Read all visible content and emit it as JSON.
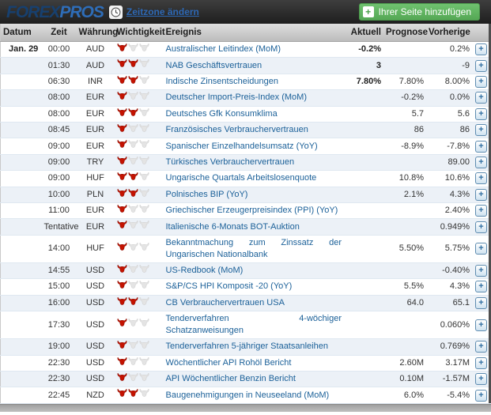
{
  "header": {
    "logo_forex": "FOREX",
    "logo_pros": "PROS",
    "timezone_link": "Zeitzone ändern",
    "add_button_label": "Ihrer Seite hinzufügen"
  },
  "glyphs": {
    "plus": "+"
  },
  "icons": {
    "timezone": "clock-icon",
    "add_button": "plus-icon",
    "importance": "bull-icon",
    "row_action": "expand-plus-icon"
  },
  "colors": {
    "button_green": "#5fb75f",
    "link_blue": "#1c6199",
    "timezone_link_blue": "#2d68b5",
    "bull_red": "#c41200",
    "bull_inactive": "#e4e4e4",
    "row_alt": "#ecf1f7",
    "topbar_dark": "#2a2a2a"
  },
  "table": {
    "columns": [
      "Datum",
      "Zeit",
      "Währung",
      "Wichtigkeit",
      "Ereignis",
      "Aktuell",
      "Prognose",
      "Vorherige"
    ],
    "rows": [
      {
        "datum": "Jan. 29",
        "zeit": "00:00",
        "waehrung": "AUD",
        "importance": 1,
        "ereignis": "Australischer Leitindex (MoM)",
        "aktuell": "-0.2%",
        "prognose": "",
        "vorherige": "0.2%",
        "twoline": false
      },
      {
        "datum": "",
        "zeit": "01:30",
        "waehrung": "AUD",
        "importance": 2,
        "ereignis": "NAB Geschäftsvertrauen",
        "aktuell": "3",
        "prognose": "",
        "vorherige": "-9",
        "twoline": false
      },
      {
        "datum": "",
        "zeit": "06:30",
        "waehrung": "INR",
        "importance": 2,
        "ereignis": "Indische Zinsentscheidungen",
        "aktuell": "7.80%",
        "prognose": "7.80%",
        "vorherige": "8.00%",
        "twoline": false
      },
      {
        "datum": "",
        "zeit": "08:00",
        "waehrung": "EUR",
        "importance": 1,
        "ereignis": "Deutscher Import-Preis-Index (MoM)",
        "aktuell": "",
        "prognose": "-0.2%",
        "vorherige": "0.0%",
        "twoline": false
      },
      {
        "datum": "",
        "zeit": "08:00",
        "waehrung": "EUR",
        "importance": 2,
        "ereignis": "Deutsches Gfk Konsumklima",
        "aktuell": "",
        "prognose": "5.7",
        "vorherige": "5.6",
        "twoline": false
      },
      {
        "datum": "",
        "zeit": "08:45",
        "waehrung": "EUR",
        "importance": 1,
        "ereignis": "Französisches Verbrauchervertrauen",
        "aktuell": "",
        "prognose": "86",
        "vorherige": "86",
        "twoline": false
      },
      {
        "datum": "",
        "zeit": "09:00",
        "waehrung": "EUR",
        "importance": 1,
        "ereignis": "Spanischer Einzelhandelsumsatz (YoY)",
        "aktuell": "",
        "prognose": "-8.9%",
        "vorherige": "-7.8%",
        "twoline": false
      },
      {
        "datum": "",
        "zeit": "09:00",
        "waehrung": "TRY",
        "importance": 1,
        "ereignis": "Türkisches Verbrauchervertrauen",
        "aktuell": "",
        "prognose": "",
        "vorherige": "89.00",
        "twoline": false
      },
      {
        "datum": "",
        "zeit": "09:00",
        "waehrung": "HUF",
        "importance": 2,
        "ereignis": "Ungarische Quartals Arbeitslosenquote",
        "aktuell": "",
        "prognose": "10.8%",
        "vorherige": "10.6%",
        "twoline": false
      },
      {
        "datum": "",
        "zeit": "10:00",
        "waehrung": "PLN",
        "importance": 2,
        "ereignis": "Polnisches BIP (YoY)",
        "aktuell": "",
        "prognose": "2.1%",
        "vorherige": "4.3%",
        "twoline": false
      },
      {
        "datum": "",
        "zeit": "11:00",
        "waehrung": "EUR",
        "importance": 1,
        "ereignis": "Griechischer Erzeugerpreisindex (PPI) (YoY)",
        "aktuell": "",
        "prognose": "",
        "vorherige": "2.40%",
        "twoline": true
      },
      {
        "datum": "",
        "zeit": "Tentative",
        "waehrung": "EUR",
        "importance": 1,
        "ereignis": "Italienische 6-Monats BOT-Auktion",
        "aktuell": "",
        "prognose": "",
        "vorherige": "0.949%",
        "twoline": false
      },
      {
        "datum": "",
        "zeit": "14:00",
        "waehrung": "HUF",
        "importance": 1,
        "ereignis": "Bekanntmachung zum Zinssatz der Ungarischen Nationalbank",
        "aktuell": "",
        "prognose": "5.50%",
        "vorherige": "5.75%",
        "twoline": true
      },
      {
        "datum": "",
        "zeit": "14:55",
        "waehrung": "USD",
        "importance": 1,
        "ereignis": "US-Redbook (MoM)",
        "aktuell": "",
        "prognose": "",
        "vorherige": "-0.40%",
        "twoline": false
      },
      {
        "datum": "",
        "zeit": "15:00",
        "waehrung": "USD",
        "importance": 1,
        "ereignis": "S&P/CS HPI Komposit -20 (YoY)",
        "aktuell": "",
        "prognose": "5.5%",
        "vorherige": "4.3%",
        "twoline": false
      },
      {
        "datum": "",
        "zeit": "16:00",
        "waehrung": "USD",
        "importance": 2,
        "ereignis": "CB Verbrauchervertrauen USA",
        "aktuell": "",
        "prognose": "64.0",
        "vorherige": "65.1",
        "twoline": false
      },
      {
        "datum": "",
        "zeit": "17:30",
        "waehrung": "USD",
        "importance": 1,
        "ereignis": "Tenderverfahren 4-wöchiger Schatzanweisungen",
        "aktuell": "",
        "prognose": "",
        "vorherige": "0.060%",
        "twoline": true
      },
      {
        "datum": "",
        "zeit": "19:00",
        "waehrung": "USD",
        "importance": 1,
        "ereignis": "Tenderverfahren 5-jähriger Staatsanleihen",
        "aktuell": "",
        "prognose": "",
        "vorherige": "0.769%",
        "twoline": true
      },
      {
        "datum": "",
        "zeit": "22:30",
        "waehrung": "USD",
        "importance": 1,
        "ereignis": "Wöchentlicher API Rohöl Bericht",
        "aktuell": "",
        "prognose": "2.60M",
        "vorherige": "3.17M",
        "twoline": false
      },
      {
        "datum": "",
        "zeit": "22:30",
        "waehrung": "USD",
        "importance": 1,
        "ereignis": "API Wöchentlicher Benzin Bericht",
        "aktuell": "",
        "prognose": "0.10M",
        "vorherige": "-1.57M",
        "twoline": false
      },
      {
        "datum": "",
        "zeit": "22:45",
        "waehrung": "NZD",
        "importance": 2,
        "ereignis": "Baugenehmigungen in Neuseeland (MoM)",
        "aktuell": "",
        "prognose": "6.0%",
        "vorherige": "-5.4%",
        "twoline": false
      }
    ]
  }
}
